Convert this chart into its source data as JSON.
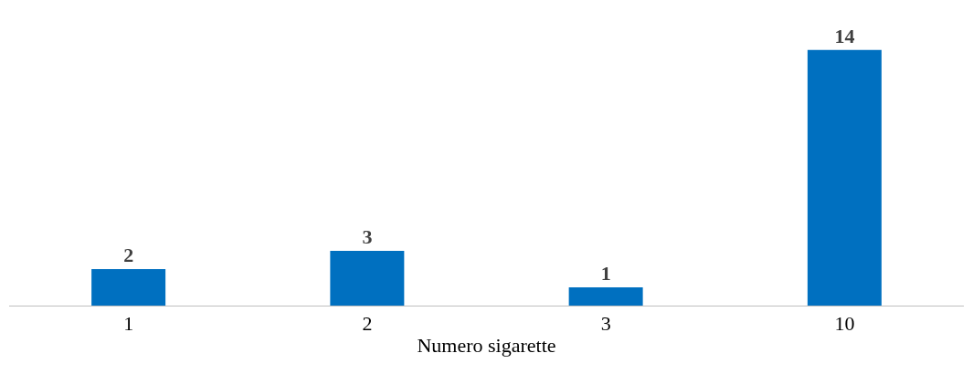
{
  "chart_data": {
    "type": "bar",
    "xlabel": "Numero sigarette",
    "categories": [
      "1",
      "2",
      "3",
      "10"
    ],
    "values": [
      2,
      3,
      1,
      14
    ],
    "color": "#0070c0",
    "data_labels": true
  }
}
